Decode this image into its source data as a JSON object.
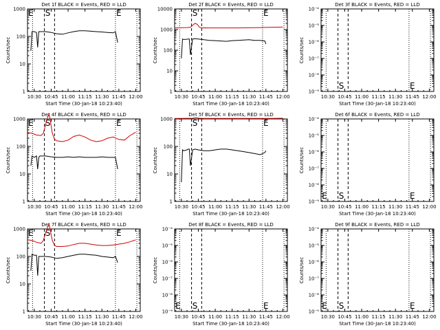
{
  "colors": {
    "events": "#000000",
    "lld": "#cc0000",
    "axis": "#000000"
  },
  "common": {
    "ylabel": "Counts/sec",
    "xlabel": "Start Time (30-Jan-18 10:23:40)",
    "x_ticks": [
      "10:30",
      "10:45",
      "11:00",
      "11:15",
      "11:30",
      "11:45",
      "12:00"
    ],
    "x_tick_minutes": [
      30,
      45,
      60,
      75,
      90,
      105,
      120
    ],
    "xlim_minutes": [
      24,
      124
    ]
  },
  "chart_data": [
    {
      "type": "line",
      "title": "Det 1f BLACK = Events, RED = LLD",
      "ylim": [
        1,
        1000
      ],
      "yticks": [
        "1",
        "10",
        "100",
        "1000"
      ],
      "markers": {
        "E1": "E",
        "S": "S",
        "E2": "E"
      },
      "series": [
        {
          "name": "Events",
          "x": [
            27,
            28,
            30,
            32,
            33,
            34,
            35,
            40,
            45,
            50,
            55,
            60,
            65,
            70,
            75,
            80,
            85,
            90,
            95,
            100,
            102,
            104
          ],
          "values": [
            30,
            150,
            150,
            140,
            40,
            150,
            150,
            150,
            140,
            125,
            120,
            135,
            150,
            160,
            160,
            155,
            150,
            145,
            140,
            135,
            150,
            60
          ]
        }
      ]
    },
    {
      "type": "line",
      "title": "Det 2f BLACK = Events, RED = LLD",
      "ylim": [
        1,
        10000
      ],
      "yticks": [
        "1",
        "10",
        "100",
        "1000",
        "10000"
      ],
      "markers": {
        "E1": "",
        "S": "S",
        "E2": "E"
      },
      "series": [
        {
          "name": "Events",
          "x": [
            30,
            31,
            32,
            35,
            36,
            37,
            38,
            40,
            42,
            45,
            50,
            55,
            60,
            65,
            70,
            75,
            80,
            85,
            90,
            95,
            100,
            104,
            105
          ],
          "values": [
            40,
            350,
            330,
            340,
            350,
            350,
            60,
            350,
            360,
            350,
            320,
            300,
            290,
            280,
            270,
            290,
            300,
            310,
            320,
            300,
            300,
            280,
            200
          ]
        },
        {
          "name": "LLD",
          "x": [
            24,
            30,
            35,
            38,
            40,
            42,
            44,
            46,
            48,
            50,
            55,
            60,
            70,
            80,
            90,
            100,
            110,
            120
          ],
          "values": [
            1200,
            1220,
            1250,
            1300,
            1600,
            2000,
            1800,
            1300,
            1200,
            1210,
            1200,
            1200,
            1200,
            1200,
            1220,
            1250,
            1300,
            1320
          ]
        }
      ]
    },
    {
      "type": "line",
      "title": "Det 3f BLACK = Events, RED = LLD",
      "ylim": [
        1e-09,
        0.0001
      ],
      "yticks": [
        "10⁻⁹",
        "10⁻⁸",
        "10⁻⁷",
        "10⁻⁶",
        "10⁻⁵",
        "10⁻⁴"
      ],
      "markers": {
        "E1": "",
        "S": "S",
        "E2": "E"
      },
      "series": []
    },
    {
      "type": "line",
      "title": "Det 4f BLACK = Events, RED = LLD",
      "ylim": [
        1,
        1000
      ],
      "yticks": [
        "1",
        "10",
        "100",
        "1000"
      ],
      "markers": {
        "E1": "E",
        "S": "S",
        "E2": "E"
      },
      "series": [
        {
          "name": "Events",
          "x": [
            27,
            28,
            30,
            32,
            33,
            34,
            35,
            40,
            45,
            50,
            55,
            60,
            65,
            70,
            75,
            80,
            85,
            90,
            95,
            100,
            102,
            104
          ],
          "values": [
            20,
            45,
            40,
            45,
            15,
            40,
            45,
            45,
            42,
            40,
            40,
            42,
            40,
            42,
            40,
            40,
            40,
            42,
            40,
            40,
            40,
            15
          ]
        },
        {
          "name": "LLD",
          "x": [
            24,
            28,
            32,
            36,
            38,
            40,
            42,
            43,
            44,
            46,
            48,
            50,
            55,
            60,
            65,
            70,
            75,
            80,
            85,
            90,
            95,
            100,
            105,
            110,
            115,
            120
          ],
          "values": [
            320,
            300,
            260,
            250,
            300,
            600,
            1200,
            1500,
            1000,
            300,
            180,
            160,
            150,
            170,
            230,
            260,
            220,
            170,
            150,
            160,
            200,
            220,
            180,
            170,
            250,
            330
          ]
        }
      ]
    },
    {
      "type": "line",
      "title": "Det 5f BLACK = Events, RED = LLD",
      "ylim": [
        1,
        1000
      ],
      "yticks": [
        "1",
        "10",
        "100",
        "1000"
      ],
      "markers": {
        "E1": "",
        "S": "S",
        "E2": "E"
      },
      "series": [
        {
          "name": "Events",
          "x": [
            30,
            31,
            32,
            35,
            36,
            37,
            38,
            40,
            42,
            45,
            50,
            55,
            60,
            65,
            70,
            75,
            80,
            85,
            90,
            95,
            100,
            104,
            105
          ],
          "values": [
            5,
            75,
            70,
            75,
            80,
            80,
            20,
            75,
            80,
            75,
            70,
            70,
            75,
            80,
            80,
            75,
            70,
            65,
            60,
            55,
            50,
            60,
            70
          ]
        },
        {
          "name": "LLD",
          "x": [
            24,
            30,
            40,
            43,
            46,
            50,
            60,
            80,
            100,
            110,
            120
          ],
          "values": [
            1050,
            1050,
            1060,
            1100,
            1060,
            1050,
            1050,
            1050,
            1050,
            1050,
            1060
          ]
        }
      ]
    },
    {
      "type": "line",
      "title": "Det 6f BLACK = Events, RED = LLD",
      "ylim": [
        1e-09,
        0.0001
      ],
      "yticks": [
        "10⁻⁹",
        "10⁻⁸",
        "10⁻⁷",
        "10⁻⁶",
        "10⁻⁵",
        "10⁻⁴"
      ],
      "markers": {
        "E1": "E",
        "S": "S",
        "E2": "E"
      },
      "series": []
    },
    {
      "type": "line",
      "title": "Det 7f BLACK = Events, RED = LLD",
      "ylim": [
        1,
        1000
      ],
      "yticks": [
        "1",
        "10",
        "100",
        "1000"
      ],
      "markers": {
        "E1": "E",
        "S": "S",
        "E2": "E"
      },
      "series": [
        {
          "name": "Events",
          "x": [
            27,
            28,
            30,
            32,
            33,
            34,
            35,
            40,
            45,
            50,
            55,
            60,
            65,
            70,
            75,
            80,
            85,
            90,
            95,
            100,
            102,
            104
          ],
          "values": [
            30,
            120,
            110,
            110,
            20,
            100,
            100,
            100,
            95,
            85,
            90,
            100,
            110,
            120,
            120,
            115,
            110,
            100,
            95,
            90,
            100,
            60
          ]
        },
        {
          "name": "LLD",
          "x": [
            24,
            28,
            32,
            36,
            38,
            40,
            42,
            43,
            44,
            46,
            48,
            50,
            55,
            60,
            65,
            70,
            75,
            80,
            85,
            90,
            95,
            100,
            105,
            110,
            115,
            120
          ],
          "values": [
            400,
            380,
            330,
            300,
            380,
            700,
            1200,
            1500,
            1000,
            380,
            250,
            230,
            230,
            240,
            270,
            300,
            300,
            280,
            260,
            250,
            250,
            260,
            280,
            300,
            340,
            400
          ]
        }
      ]
    },
    {
      "type": "line",
      "title": "Det 8f BLACK = Events, RED = LLD",
      "ylim": [
        1e-09,
        0.0001
      ],
      "yticks": [
        "10⁻⁹",
        "10⁻⁸",
        "10⁻⁷",
        "10⁻⁶",
        "10⁻⁵",
        "10⁻⁴"
      ],
      "markers": {
        "E1": "E",
        "S": "S",
        "E2": "E"
      },
      "series": []
    },
    {
      "type": "line",
      "title": "Det 9f BLACK = Events, RED = LLD",
      "ylim": [
        1e-09,
        0.0001
      ],
      "yticks": [
        "10⁻⁹",
        "10⁻⁸",
        "10⁻⁷",
        "10⁻⁶",
        "10⁻⁵",
        "10⁻⁴"
      ],
      "markers": {
        "E1": "E",
        "S": "S",
        "E2": "E"
      },
      "series": []
    }
  ]
}
